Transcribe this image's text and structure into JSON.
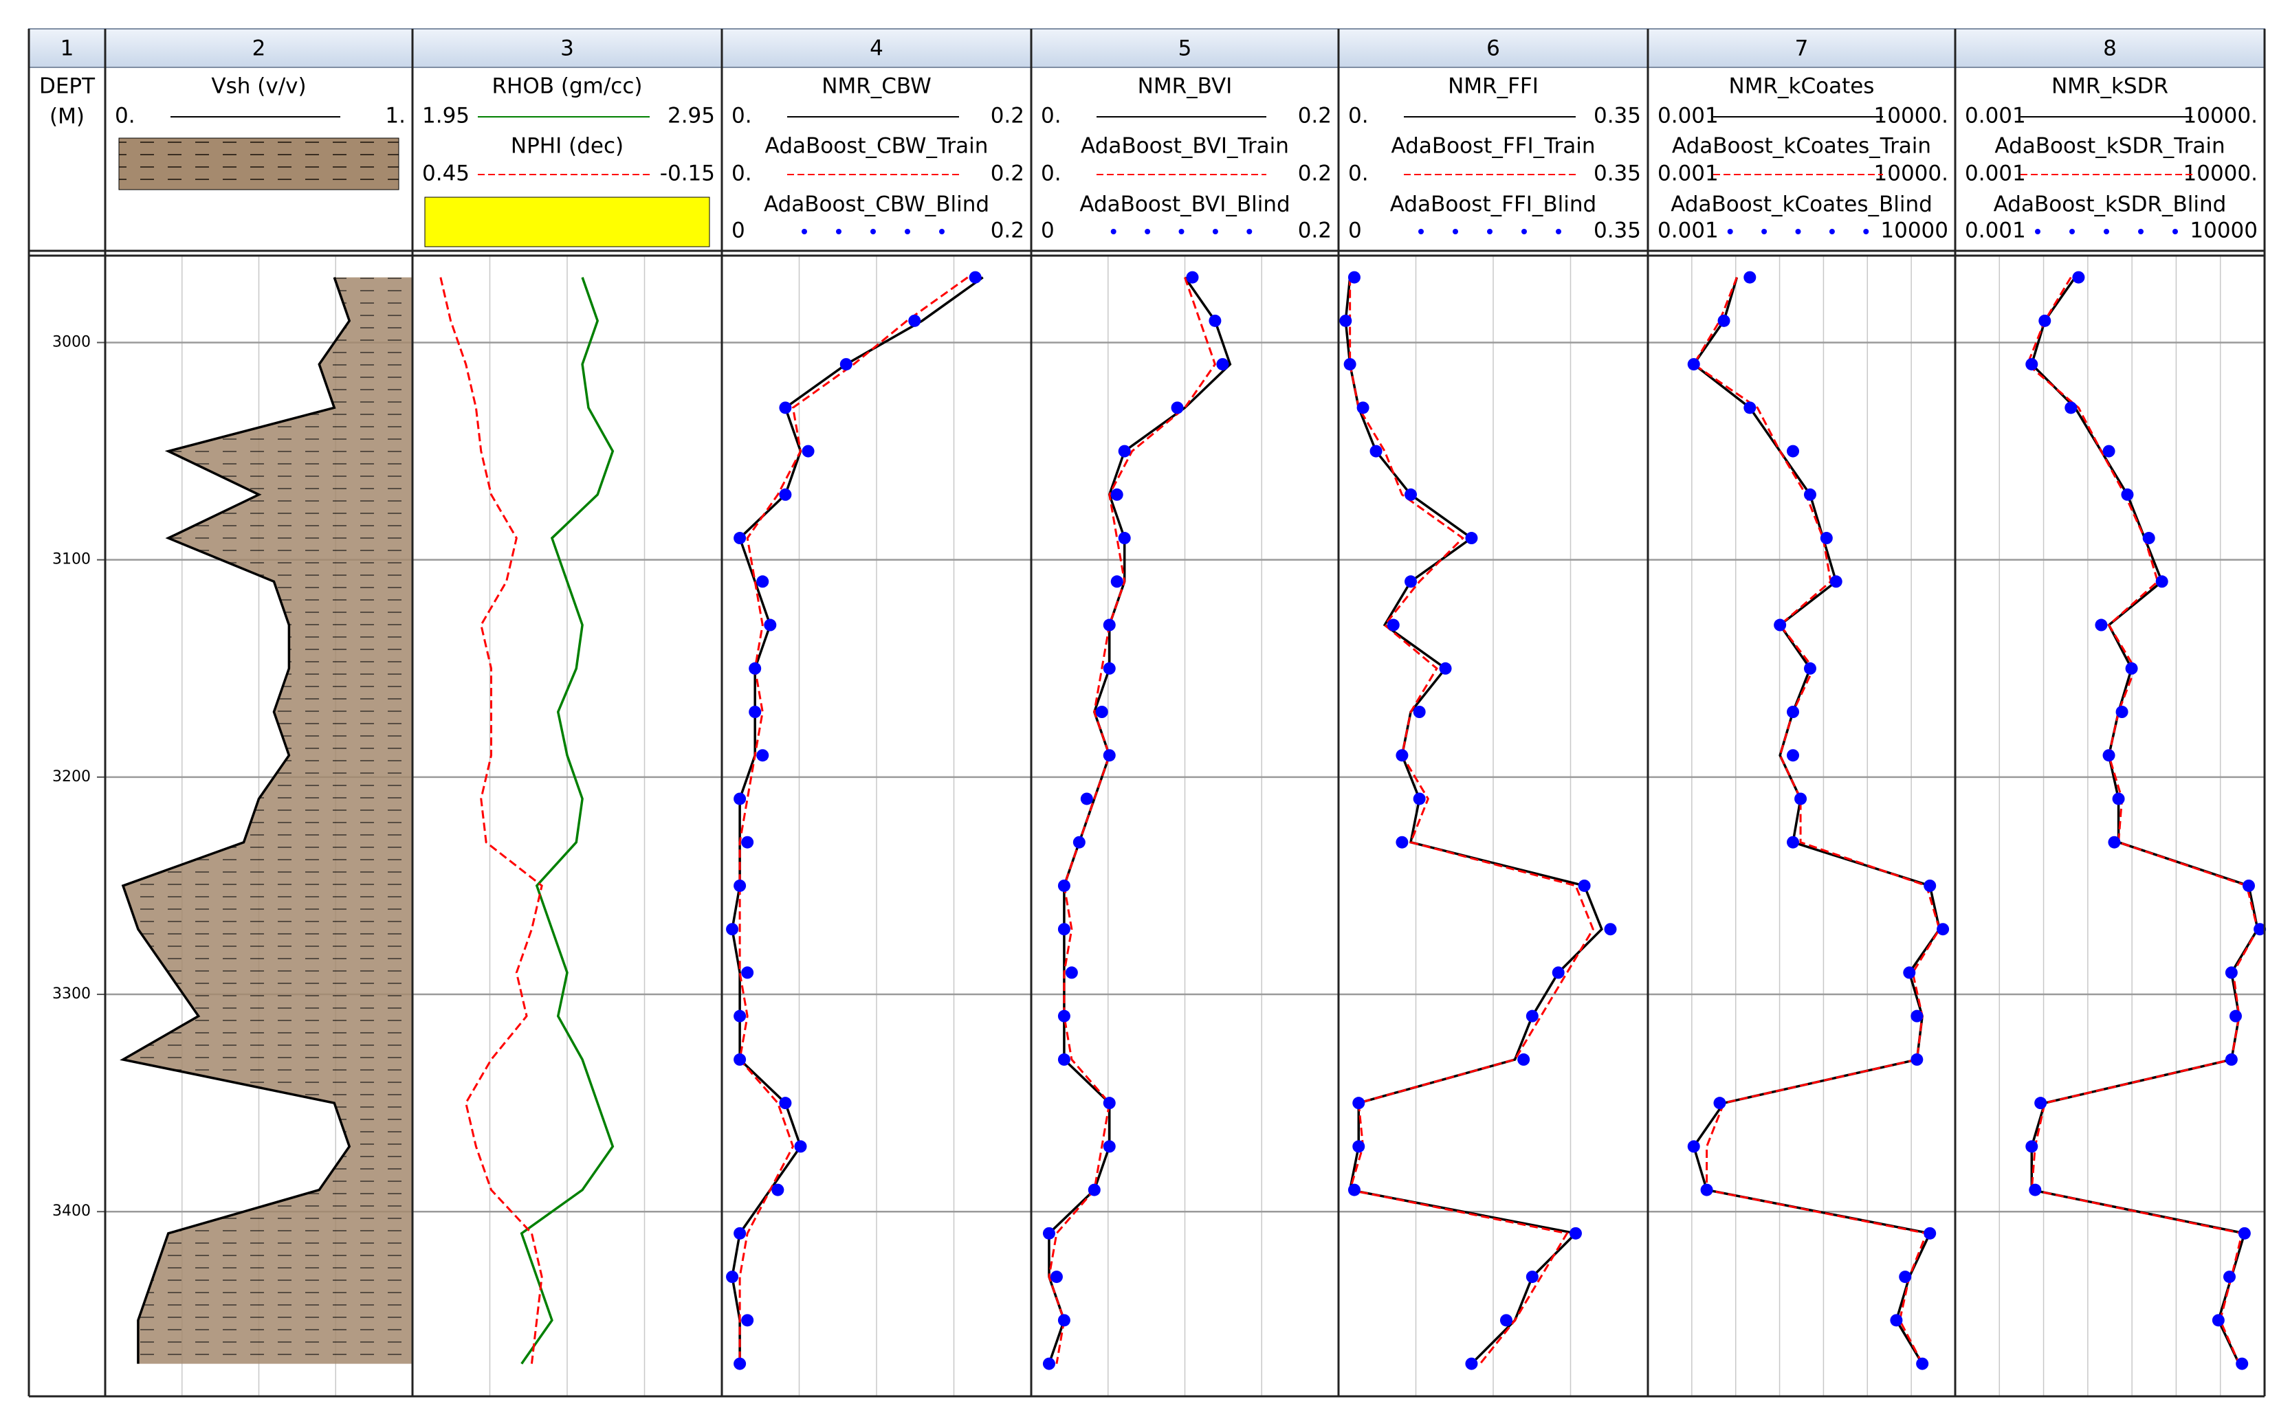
{
  "chart_data": {
    "type": "well_log",
    "depth_title": [
      "DEPT",
      "(M)"
    ],
    "ylim": [
      2960,
      3485
    ],
    "yticks": [
      3000,
      3100,
      3200,
      3300,
      3400
    ],
    "grid": true,
    "depths": [
      2970,
      2990,
      3010,
      3030,
      3050,
      3070,
      3090,
      3110,
      3130,
      3150,
      3170,
      3190,
      3210,
      3230,
      3250,
      3270,
      3290,
      3310,
      3330,
      3350,
      3370,
      3390,
      3410,
      3430,
      3450,
      3470
    ],
    "tracks": [
      {
        "number": 1
      },
      {
        "number": 2,
        "shale_fill": "#a58a6e",
        "curves": [
          {
            "name": "Vsh (v/v)",
            "xlim": [
              {
                "value": 0,
                "label": "0."
              },
              {
                "value": 1,
                "label": "1."
              }
            ],
            "color": "#000000",
            "style": "solid",
            "values": [
              0.75,
              0.8,
              0.7,
              0.75,
              0.2,
              0.5,
              0.2,
              0.55,
              0.6,
              0.6,
              0.55,
              0.6,
              0.5,
              0.45,
              0.05,
              0.1,
              0.2,
              0.3,
              0.05,
              0.75,
              0.8,
              0.7,
              0.2,
              0.15,
              0.1,
              0.1
            ]
          }
        ]
      },
      {
        "number": 3,
        "crossover_fill": "#ffff00",
        "curves": [
          {
            "name": "RHOB (gm/cc)",
            "xlim": [
              1.95,
              2.95
            ],
            "color": "#008000",
            "style": "solid",
            "values": [
              2.5,
              2.55,
              2.5,
              2.52,
              2.6,
              2.55,
              2.4,
              2.45,
              2.5,
              2.48,
              2.42,
              2.45,
              2.5,
              2.48,
              2.35,
              2.4,
              2.45,
              2.42,
              2.5,
              2.55,
              2.6,
              2.5,
              2.3,
              2.35,
              2.4,
              2.3
            ]
          },
          {
            "name": "NPHI (dec)",
            "xlim": [
              0.45,
              -0.15
            ],
            "color": "#ff0000",
            "style": "dashed",
            "values": [
              0.4,
              0.38,
              0.35,
              0.33,
              0.32,
              0.3,
              0.25,
              0.27,
              0.32,
              0.3,
              0.3,
              0.3,
              0.32,
              0.31,
              0.2,
              0.22,
              0.25,
              0.23,
              0.3,
              0.35,
              0.33,
              0.3,
              0.22,
              0.2,
              0.21,
              0.22
            ]
          }
        ]
      },
      {
        "number": 4,
        "curves": [
          {
            "name": "NMR_CBW",
            "xlim": [
              {
                "value": 0,
                "label": "0."
              },
              0.2
            ],
            "color": "#000000",
            "style": "solid",
            "values": [
              0.17,
              0.13,
              0.08,
              0.04,
              0.05,
              0.04,
              0.01,
              0.02,
              0.03,
              0.02,
              0.02,
              0.02,
              0.01,
              0.01,
              0.01,
              0.005,
              0.01,
              0.01,
              0.01,
              0.04,
              0.05,
              0.03,
              0.01,
              0.005,
              0.01,
              0.01
            ]
          },
          {
            "name": "AdaBoost_CBW_Train",
            "xlim": [
              {
                "value": 0,
                "label": "0."
              },
              0.2
            ],
            "color": "#ff0000",
            "style": "dashed",
            "values": [
              0.16,
              0.12,
              0.085,
              0.045,
              0.05,
              0.035,
              0.015,
              0.02,
              0.025,
              0.02,
              0.025,
              0.02,
              0.015,
              0.01,
              0.01,
              0.01,
              0.01,
              0.015,
              0.01,
              0.035,
              0.045,
              0.03,
              0.015,
              0.01,
              0.01,
              0.01
            ]
          },
          {
            "name": "AdaBoost_CBW_Blind",
            "xlim": [
              0,
              0.2
            ],
            "color": "#0000ff",
            "style": "dots",
            "values": [
              0.165,
              0.125,
              0.08,
              0.04,
              0.055,
              0.04,
              0.01,
              0.025,
              0.03,
              0.02,
              0.02,
              0.025,
              0.01,
              0.015,
              0.01,
              0.005,
              0.015,
              0.01,
              0.01,
              0.04,
              0.05,
              0.035,
              0.01,
              0.005,
              0.015,
              0.01
            ]
          }
        ]
      },
      {
        "number": 5,
        "curves": [
          {
            "name": "NMR_BVI",
            "xlim": [
              {
                "value": 0,
                "label": "0."
              },
              0.2
            ],
            "color": "#000000",
            "style": "solid",
            "values": [
              0.1,
              0.12,
              0.13,
              0.1,
              0.06,
              0.05,
              0.06,
              0.06,
              0.05,
              0.05,
              0.04,
              0.05,
              0.04,
              0.03,
              0.02,
              0.02,
              0.02,
              0.02,
              0.02,
              0.05,
              0.05,
              0.04,
              0.01,
              0.01,
              0.02,
              0.01
            ]
          },
          {
            "name": "AdaBoost_BVI_Train",
            "xlim": [
              {
                "value": 0,
                "label": "0."
              },
              0.2
            ],
            "color": "#ff0000",
            "style": "dashed",
            "values": [
              0.1,
              0.11,
              0.12,
              0.1,
              0.065,
              0.05,
              0.055,
              0.06,
              0.05,
              0.045,
              0.04,
              0.05,
              0.04,
              0.03,
              0.02,
              0.025,
              0.02,
              0.02,
              0.025,
              0.05,
              0.045,
              0.04,
              0.015,
              0.01,
              0.02,
              0.015
            ]
          },
          {
            "name": "AdaBoost_BVI_Blind",
            "xlim": [
              0,
              0.2
            ],
            "color": "#0000ff",
            "style": "dots",
            "values": [
              0.105,
              0.12,
              0.125,
              0.095,
              0.06,
              0.055,
              0.06,
              0.055,
              0.05,
              0.05,
              0.045,
              0.05,
              0.035,
              0.03,
              0.02,
              0.02,
              0.025,
              0.02,
              0.02,
              0.05,
              0.05,
              0.04,
              0.01,
              0.015,
              0.02,
              0.01
            ]
          }
        ]
      },
      {
        "number": 6,
        "curves": [
          {
            "name": "NMR_FFI",
            "xlim": [
              {
                "value": 0,
                "label": "0."
              },
              0.35
            ],
            "color": "#000000",
            "style": "solid",
            "values": [
              0.01,
              0.005,
              0.01,
              0.02,
              0.04,
              0.08,
              0.15,
              0.08,
              0.05,
              0.12,
              0.08,
              0.07,
              0.09,
              0.08,
              0.28,
              0.3,
              0.25,
              0.22,
              0.2,
              0.02,
              0.02,
              0.01,
              0.27,
              0.22,
              0.2,
              0.15
            ]
          },
          {
            "name": "AdaBoost_FFI_Train",
            "xlim": [
              {
                "value": 0,
                "label": "0."
              },
              0.35
            ],
            "color": "#ff0000",
            "style": "dashed",
            "values": [
              0.01,
              0.01,
              0.01,
              0.02,
              0.05,
              0.07,
              0.14,
              0.09,
              0.05,
              0.11,
              0.08,
              0.07,
              0.1,
              0.08,
              0.27,
              0.29,
              0.26,
              0.23,
              0.2,
              0.02,
              0.025,
              0.01,
              0.26,
              0.23,
              0.2,
              0.16
            ]
          },
          {
            "name": "AdaBoost_FFI_Blind",
            "xlim": [
              0,
              0.35
            ],
            "color": "#0000ff",
            "style": "dots",
            "values": [
              0.015,
              0.005,
              0.01,
              0.025,
              0.04,
              0.08,
              0.15,
              0.08,
              0.06,
              0.12,
              0.09,
              0.07,
              0.09,
              0.07,
              0.28,
              0.31,
              0.25,
              0.22,
              0.21,
              0.02,
              0.02,
              0.015,
              0.27,
              0.22,
              0.19,
              0.15
            ]
          }
        ]
      },
      {
        "number": 7,
        "log": true,
        "curves": [
          {
            "name": "NMR_kCoates",
            "xlim": [
              0.001,
              {
                "value": 10000,
                "label": "10000."
              }
            ],
            "color": "#000000",
            "style": "solid",
            "values": [
              0.1,
              0.05,
              0.01,
              0.2,
              1,
              5,
              10,
              20,
              1,
              5,
              2,
              1,
              3,
              2,
              3000,
              5000,
              1000,
              2000,
              1500,
              0.05,
              0.01,
              0.02,
              3000,
              1000,
              500,
              2000
            ]
          },
          {
            "name": "AdaBoost_kCoates_Train",
            "xlim": [
              0.001,
              {
                "value": 10000,
                "label": "10000."
              }
            ],
            "color": "#ff0000",
            "style": "dashed",
            "values": [
              0.1,
              0.04,
              0.01,
              0.3,
              1,
              4,
              10,
              15,
              1,
              6,
              2,
              1,
              3,
              3,
              2500,
              5000,
              1200,
              2000,
              1500,
              0.05,
              0.02,
              0.02,
              2500,
              1000,
              600,
              2000
            ]
          },
          {
            "name": "AdaBoost_kCoates_Blind",
            "xlim": [
              0.001,
              10000
            ],
            "color": "#0000ff",
            "style": "dots",
            "values": [
              0.2,
              0.05,
              0.01,
              0.2,
              2,
              5,
              12,
              20,
              1,
              5,
              2,
              2,
              3,
              2,
              3000,
              6000,
              1000,
              1500,
              1500,
              0.04,
              0.01,
              0.02,
              3000,
              800,
              500,
              2000
            ]
          }
        ]
      },
      {
        "number": 8,
        "log": true,
        "curves": [
          {
            "name": "NMR_kSDR",
            "xlim": [
              0.001,
              {
                "value": 10000,
                "label": "10000."
              }
            ],
            "color": "#000000",
            "style": "solid",
            "values": [
              0.5,
              0.1,
              0.05,
              0.5,
              2,
              8,
              20,
              50,
              3,
              10,
              5,
              3,
              5,
              5,
              5000,
              8000,
              2000,
              3000,
              2000,
              0.1,
              0.05,
              0.05,
              4000,
              2000,
              1000,
              3000
            ]
          },
          {
            "name": "AdaBoost_kSDR_Train",
            "xlim": [
              0.001,
              {
                "value": 10000,
                "label": "10000."
              }
            ],
            "color": "#ff0000",
            "style": "dashed",
            "values": [
              0.4,
              0.1,
              0.04,
              0.6,
              2,
              7,
              20,
              40,
              3,
              12,
              5,
              3,
              6,
              5,
              4500,
              8000,
              2200,
              3000,
              2000,
              0.1,
              0.06,
              0.05,
              3500,
              2000,
              1100,
              3000
            ]
          },
          {
            "name": "AdaBoost_kSDR_Blind",
            "xlim": [
              0.001,
              10000
            ],
            "color": "#0000ff",
            "style": "dots",
            "values": [
              0.6,
              0.1,
              0.05,
              0.4,
              3,
              8,
              25,
              50,
              2,
              10,
              6,
              3,
              5,
              4,
              5000,
              9000,
              2000,
              2500,
              2000,
              0.08,
              0.05,
              0.06,
              4000,
              1800,
              1000,
              3500
            ]
          }
        ]
      }
    ]
  }
}
